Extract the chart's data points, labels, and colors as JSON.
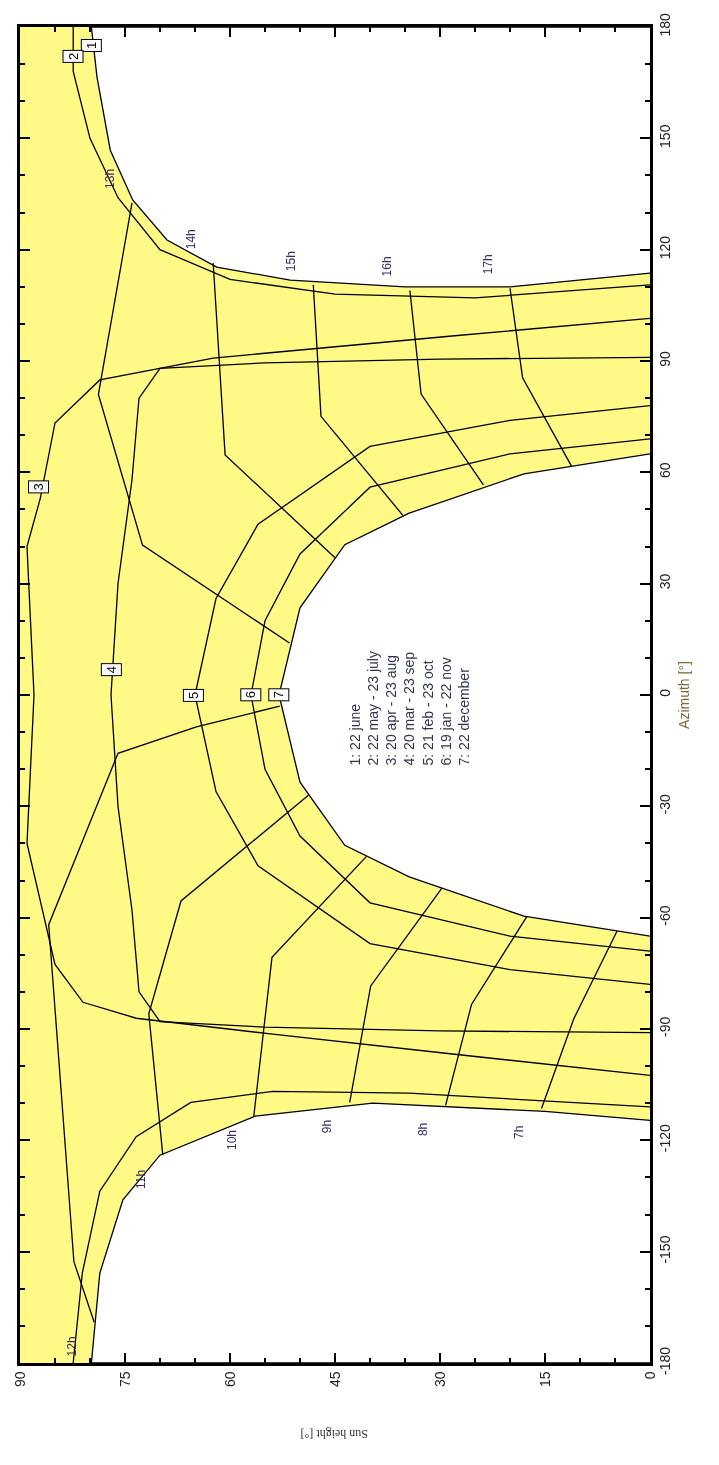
{
  "chart_data": {
    "type": "line",
    "xlabel": "Sun height [°]",
    "ylabel": "Azimuth [°]",
    "xlim": [
      90,
      0
    ],
    "ylim": [
      -180,
      180
    ],
    "xticks": [
      90,
      {
        "value": 85,
        "label": null
      },
      {
        "value": 80,
        "label": null
      },
      75,
      {
        "value": 70,
        "label": null
      },
      {
        "value": 65,
        "label": null
      },
      60,
      {
        "value": 55,
        "label": null
      },
      {
        "value": 50,
        "label": null
      },
      45,
      {
        "value": 40,
        "label": null
      },
      {
        "value": 35,
        "label": null
      },
      30,
      {
        "value": 25,
        "label": null
      },
      {
        "value": 20,
        "label": null
      },
      15,
      {
        "value": 10,
        "label": null
      },
      {
        "value": 5,
        "label": null
      },
      0
    ],
    "yticks": [
      -180,
      {
        "value": -170,
        "label": null
      },
      {
        "value": -160,
        "label": null
      },
      -150,
      {
        "value": -140,
        "label": null
      },
      {
        "value": -130,
        "label": null
      },
      -120,
      {
        "value": -110,
        "label": null
      },
      {
        "value": -100,
        "label": null
      },
      -90,
      {
        "value": -80,
        "label": null
      },
      {
        "value": -70,
        "label": null
      },
      -60,
      {
        "value": -50,
        "label": null
      },
      {
        "value": -40,
        "label": null
      },
      -30,
      {
        "value": -20,
        "label": null
      },
      {
        "value": -10,
        "label": null
      },
      0,
      {
        "value": 10,
        "label": null
      },
      {
        "value": 20,
        "label": null
      },
      30,
      {
        "value": 40,
        "label": null
      },
      {
        "value": 50,
        "label": null
      },
      60,
      {
        "value": 70,
        "label": null
      },
      {
        "value": 80,
        "label": null
      },
      90,
      {
        "value": 100,
        "label": null
      },
      {
        "value": 110,
        "label": null
      },
      120,
      {
        "value": 130,
        "label": null
      },
      {
        "value": 140,
        "label": null
      },
      150,
      {
        "value": 160,
        "label": null
      },
      {
        "value": 170,
        "label": null
      },
      180
    ],
    "grid": false,
    "legend": false,
    "marker": "none",
    "line_style": "solid",
    "bands": [
      {
        "axis": "x",
        "from": 90,
        "to": 0,
        "color": "#fffa85"
      }
    ],
    "series": [
      {
        "type": "area",
        "color": "#000000",
        "x": [
          0,
          15,
          39.6,
          56.4,
          70,
          75.3,
          78.6,
          79.8,
          0
        ],
        "values": [
          -114.6,
          -112.2,
          -110,
          -113.5,
          -124,
          -136,
          -155.8,
          -180,
          -180
        ]
      },
      {
        "type": "area",
        "color": "#000000",
        "x": [
          0,
          20,
          35,
          51.4,
          61.9,
          69,
          73.9,
          77.1,
          79,
          79.8,
          0
        ],
        "values": [
          113.7,
          110,
          110,
          111.8,
          115.3,
          122.6,
          133.4,
          146.8,
          166.5,
          180,
          180
        ]
      },
      {
        "color": "#000000",
        "x": [
          0,
          34.4,
          53.9,
          65.6,
          73.4,
          78.6,
          81.1,
          82.4,
          null,
          82.4,
          82.4,
          80,
          76,
          70,
          60,
          45,
          25,
          0
        ],
        "values": [
          -111,
          -107.3,
          -106.8,
          -109.8,
          -119,
          -133.7,
          -155.8,
          -180,
          null,
          180,
          168,
          150,
          134,
          120,
          112,
          108,
          107,
          110.5
        ]
      },
      {
        "color": "#000000",
        "x": [
          0,
          27.9,
          53.9,
          73.4,
          81,
          85,
          89,
          88,
          89,
          87.1,
          85,
          78.6,
          62.4,
          27.9,
          0
        ],
        "values": [
          -102.5,
          -96.8,
          -91.4,
          -87.1,
          -82.8,
          -72.6,
          -40,
          0,
          40,
          53,
          73.3,
          84.9,
          90.8,
          96.8,
          101.5
        ]
      },
      {
        "color": "#000000",
        "x": [
          0,
          30,
          55,
          70,
          73,
          74,
          76,
          77,
          76,
          74,
          73,
          70,
          55,
          30,
          0
        ],
        "values": [
          -91,
          -90.5,
          -89.5,
          -88,
          -80,
          -58,
          -30,
          0,
          30,
          58,
          80,
          88,
          89.5,
          90.5,
          91
        ]
      },
      {
        "color": "#000000",
        "x": [
          0,
          20,
          40,
          56,
          62,
          65,
          62,
          56,
          40,
          20,
          0
        ],
        "values": [
          -78,
          -74,
          -67,
          -46,
          -26,
          0,
          26,
          46,
          67,
          74,
          78
        ]
      },
      {
        "color": "#000000",
        "x": [
          0,
          20,
          40,
          50,
          55,
          57,
          55,
          50,
          40,
          20,
          0
        ],
        "values": [
          -69,
          -65,
          -56,
          -38,
          -20,
          0,
          20,
          38,
          56,
          65,
          69
        ]
      },
      {
        "type": "area",
        "color": "#000000",
        "x": [
          0,
          18,
          34.4,
          43.6,
          50,
          53,
          50,
          43.6,
          34.4,
          18,
          0
        ],
        "values": [
          -65,
          -59.6,
          -49,
          -40.5,
          -23.5,
          0,
          23.5,
          40.5,
          49,
          59.6,
          65
        ]
      },
      {
        "name": "7h",
        "color": "#000000",
        "x": [
          15.5,
          10.9,
          4.7
        ],
        "values": [
          -111.4,
          -87.3,
          -63.6
        ]
      },
      {
        "name": "8h",
        "color": "#000000",
        "x": [
          29.2,
          25.5,
          17.6
        ],
        "values": [
          -110.6,
          -83.4,
          -59.7
        ]
      },
      {
        "name": "9h",
        "color": "#000000",
        "x": [
          42.9,
          39.9,
          29.7
        ],
        "values": [
          -109.8,
          -78.4,
          -52
        ]
      },
      {
        "name": "10h",
        "color": "#000000",
        "x": [
          56.6,
          54,
          40.5
        ],
        "values": [
          -113.5,
          -70.7,
          -43.5
        ]
      },
      {
        "name": "11h",
        "color": "#000000",
        "x": [
          69.6,
          71.6,
          67,
          48.8
        ],
        "values": [
          -124,
          -85.9,
          -55.5,
          -27
        ]
      },
      {
        "name": "12h",
        "color": "#000000",
        "x": [
          79.4,
          82.3,
          85.9,
          76,
          64.8,
          52.9
        ],
        "values": [
          -169,
          -152.7,
          -61.9,
          -15.7,
          -8.6,
          -3
        ]
      },
      {
        "name": "13h",
        "color": "#000000",
        "x": [
          74,
          78.8,
          72.5,
          51.5
        ],
        "values": [
          132.6,
          81,
          40.4,
          14
        ]
      },
      {
        "name": "14h",
        "color": "#000000",
        "x": [
          62.4,
          60.7,
          45
        ],
        "values": [
          116.4,
          64.7,
          37
        ]
      },
      {
        "name": "15h",
        "color": "#000000",
        "x": [
          48.1,
          47,
          35.3
        ],
        "values": [
          110.5,
          75.1,
          48.4
        ]
      },
      {
        "name": "16h",
        "color": "#000000",
        "x": [
          34.3,
          32.7,
          23.8
        ],
        "values": [
          109,
          81.1,
          56.6
        ]
      },
      {
        "name": "17h",
        "color": "#000000",
        "x": [
          20,
          18.2,
          11.2
        ],
        "values": [
          109.6,
          85.5,
          61.6
        ]
      }
    ],
    "annotations": [
      {
        "text": "1",
        "x": 79.8,
        "y": 175
      },
      {
        "text": "2",
        "x": 82.4,
        "y": 172
      },
      {
        "text": "3",
        "x": 87.4,
        "y": 56
      },
      {
        "text": "4",
        "x": 77,
        "y": 6.7
      },
      {
        "text": "5",
        "x": 65.3,
        "y": 0
      },
      {
        "text": "6",
        "x": 57.1,
        "y": 0
      },
      {
        "text": "7",
        "x": 53.1,
        "y": 0
      },
      "1: 22 june\n2: 22 may - 23 july\n3: 20 apr - 23 aug\n4: 20 mar - 23 sep\n5: 21 feb - 23 oct\n6: 19 jan - 22 nov\n7: 22 december"
    ]
  }
}
